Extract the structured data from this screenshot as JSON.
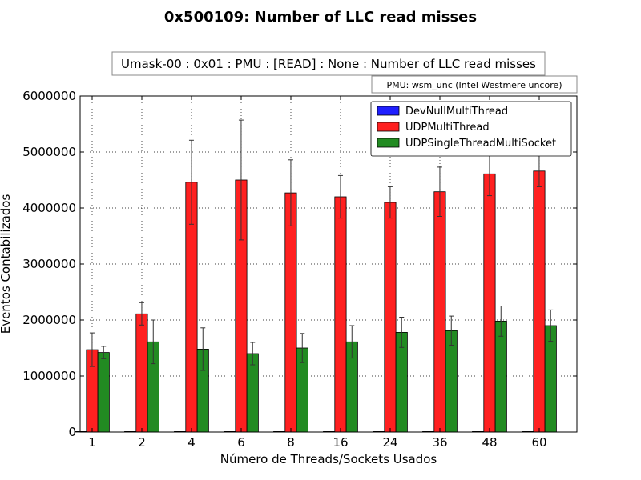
{
  "chart_data": {
    "type": "bar",
    "title": "0x500109: Number of LLC read misses",
    "subtitle": "Umask-00 : 0x01 : PMU : [READ] : None : Number of LLC read misses",
    "pmu_note": "PMU: wsm_unc (Intel Westmere uncore)",
    "xlabel": "Número de Threads/Sockets Usados",
    "ylabel": "Eventos Contabilizados",
    "categories": [
      "1",
      "2",
      "4",
      "6",
      "8",
      "16",
      "24",
      "36",
      "48",
      "60"
    ],
    "ylim": [
      0,
      6000000
    ],
    "yticks": [
      "0",
      "1000000",
      "2000000",
      "3000000",
      "4000000",
      "5000000",
      "6000000"
    ],
    "grid": true,
    "legend_position": "top-right",
    "series": [
      {
        "name": "DevNullMultiThread",
        "color": "#1f1fff",
        "values": [
          0,
          0,
          0,
          0,
          0,
          0,
          0,
          0,
          0,
          0
        ],
        "errors": [
          0,
          0,
          0,
          0,
          0,
          0,
          0,
          0,
          0,
          0
        ]
      },
      {
        "name": "UDPMultiThread",
        "color": "#ff2020",
        "values": [
          1470000,
          2110000,
          4460000,
          4500000,
          4270000,
          4200000,
          4100000,
          4290000,
          4610000,
          4660000
        ],
        "errors": [
          300000,
          200000,
          750000,
          1070000,
          590000,
          380000,
          280000,
          440000,
          390000,
          280000
        ]
      },
      {
        "name": "UDPSingleThreadMultiSocket",
        "color": "#228b22",
        "values": [
          1420000,
          1610000,
          1480000,
          1400000,
          1500000,
          1610000,
          1780000,
          1810000,
          1980000,
          1900000
        ],
        "errors": [
          110000,
          390000,
          380000,
          200000,
          260000,
          290000,
          270000,
          260000,
          270000,
          280000
        ]
      }
    ]
  }
}
